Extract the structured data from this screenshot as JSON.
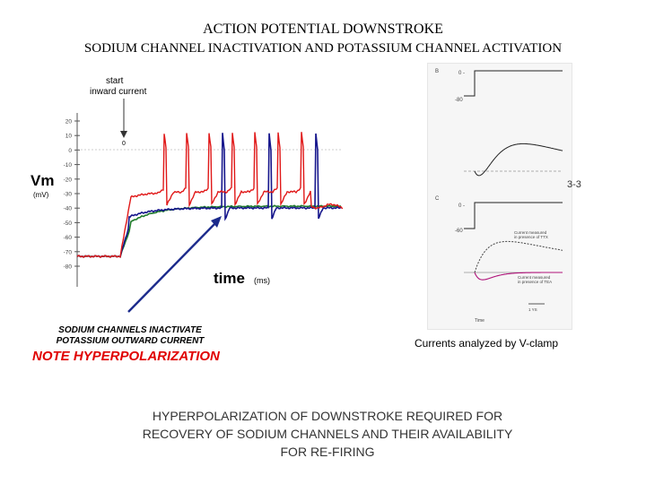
{
  "title": "ACTION POTENTIAL DOWNSTROKE",
  "subtitle": "SODIUM CHANNEL INACTIVATION AND POTASSIUM CHANNEL ACTIVATION",
  "left_figure": {
    "annotation": "start\ninward current",
    "annotation_line1": "start",
    "annotation_line2": "inward current",
    "y_label": "Vm",
    "y_unit": "(mV)",
    "y_ticks": [
      "20",
      "10",
      "0",
      "-10",
      "-20",
      "-30",
      "-40",
      "-50",
      "-60",
      "-70",
      "-80"
    ],
    "zero_marker": "0",
    "x_label": "time",
    "x_unit": "(ms)",
    "colors": {
      "trace_red": "#e01818",
      "trace_blue": "#16168c",
      "trace_green": "#1e7a2a",
      "arrow": "#1c2b8c",
      "axis": "#555555"
    }
  },
  "captions": {
    "line1": "SODIUM CHANNELS INACTIVATE",
    "line2": "POTASSIUM OUTWARD CURRENT",
    "note": "NOTE HYPERPOLARIZATION",
    "note_color": "#e00000"
  },
  "right_figure": {
    "caption": "Currents analyzed by V-clamp",
    "fragment": "3-3",
    "label_b": "B",
    "label_c": "C",
    "label_0a": "0 -",
    "label_80a": "-80",
    "label_0b": "0 -",
    "label_80b": "-60",
    "label_measured": "Current measured",
    "label_measured2": "in presence of TTX",
    "label_presence": "Current measured",
    "label_presence2": "in presence of TEA",
    "label_scale": "1 YS",
    "label_time": "Time"
  },
  "bottom_text": {
    "line1": "HYPERPOLARIZATION OF DOWNSTROKE REQUIRED FOR",
    "line2": "RECOVERY OF SODIUM CHANNELS AND THEIR AVAILABILITY",
    "line3": "FOR RE-FIRING"
  }
}
